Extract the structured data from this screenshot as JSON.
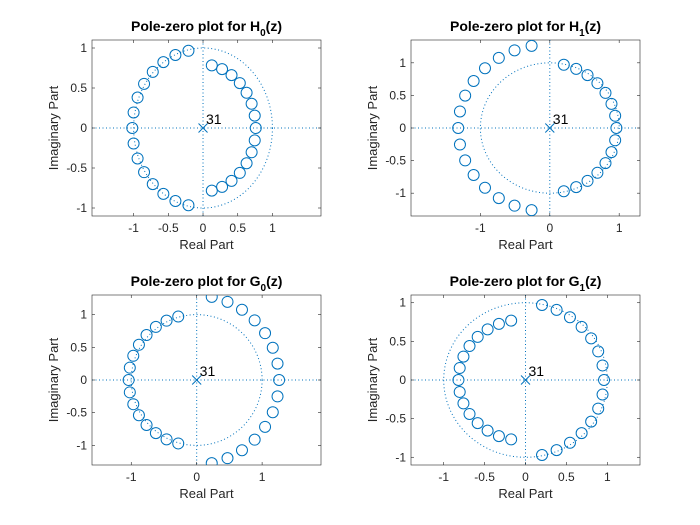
{
  "chart_data": [
    {
      "type": "scatter",
      "title": "Pole-zero plot for H",
      "title_subscript": "0",
      "title_suffix": "(z)",
      "xlabel": "Real Part",
      "ylabel": "Imaginary Part",
      "xlim": [
        -1.6,
        1.7
      ],
      "ylim": [
        -1.1,
        1.1
      ],
      "xticks": [
        -1,
        -0.5,
        0,
        0.5,
        1
      ],
      "xtick_labels": [
        "-1",
        "-0.5",
        "0",
        "0.5",
        "1"
      ],
      "yticks": [
        -1,
        -0.5,
        0,
        0.5,
        1
      ],
      "ytick_labels": [
        "-1",
        "-0.5",
        "0",
        "0.5",
        "1"
      ],
      "color": "#0072bd",
      "unit_circle": true,
      "poles": [
        [
          0,
          0
        ]
      ],
      "pole_multiplicity_label": "31",
      "zeros_arcs": [
        {
          "cx": -0.04,
          "cy": 0,
          "r": 0.98,
          "from_deg": 100,
          "to_deg": 260,
          "count": 15
        },
        {
          "cx": -0.04,
          "cy": 0,
          "r": 0.8,
          "from_deg": -78,
          "to_deg": 78,
          "count": 15
        }
      ]
    },
    {
      "type": "scatter",
      "title": "Pole-zero plot for H",
      "title_subscript": "1",
      "title_suffix": "(z)",
      "xlabel": "Real Part",
      "ylabel": "Imaginary Part",
      "xlim": [
        -2,
        1.3
      ],
      "ylim": [
        -1.35,
        1.35
      ],
      "xticks": [
        -1,
        0,
        1
      ],
      "xtick_labels": [
        "-1",
        "0",
        "1"
      ],
      "yticks": [
        -1,
        -0.5,
        0,
        0.5,
        1
      ],
      "ytick_labels": [
        "-1",
        "-0.5",
        "0",
        "0.5",
        "1"
      ],
      "color": "#0072bd",
      "unit_circle": true,
      "poles": [
        [
          0,
          0
        ]
      ],
      "pole_multiplicity_label": "31",
      "zeros_arcs": [
        {
          "cx": -0.04,
          "cy": 0,
          "r": 1.28,
          "from_deg": 100,
          "to_deg": 260,
          "count": 15
        },
        {
          "cx": -0.04,
          "cy": 0,
          "r": 1.0,
          "from_deg": -76,
          "to_deg": 76,
          "count": 15
        }
      ]
    },
    {
      "type": "scatter",
      "title": "Pole-zero plot for G",
      "title_subscript": "0",
      "title_suffix": "(z)",
      "xlabel": "Real Part",
      "ylabel": "Imaginary Part",
      "xlim": [
        -1.6,
        1.9
      ],
      "ylim": [
        -1.3,
        1.3
      ],
      "xticks": [
        -1,
        0,
        1
      ],
      "xtick_labels": [
        "-1",
        "0",
        "1"
      ],
      "yticks": [
        -1,
        -0.5,
        0,
        0.5,
        1
      ],
      "ytick_labels": [
        "-1",
        "-0.5",
        "0",
        "0.5",
        "1"
      ],
      "color": "#0072bd",
      "unit_circle": true,
      "poles": [
        [
          0,
          0
        ]
      ],
      "pole_multiplicity_label": "31",
      "zeros_arcs": [
        {
          "cx": -0.04,
          "cy": 0,
          "r": 1.0,
          "from_deg": 104,
          "to_deg": 256,
          "count": 15
        },
        {
          "cx": -0.04,
          "cy": 0,
          "r": 1.3,
          "from_deg": -78,
          "to_deg": 78,
          "count": 15
        }
      ]
    },
    {
      "type": "scatter",
      "title": "Pole-zero plot for G",
      "title_subscript": "1",
      "title_suffix": "(z)",
      "xlabel": "Real Part",
      "ylabel": "Imaginary Part",
      "xlim": [
        -1.4,
        1.4
      ],
      "ylim": [
        -1.1,
        1.1
      ],
      "xticks": [
        -1,
        -0.5,
        0,
        0.5,
        1
      ],
      "xtick_labels": [
        "-1",
        "-0.5",
        "0",
        "0.5",
        "1"
      ],
      "yticks": [
        -1,
        -0.5,
        0,
        0.5,
        1
      ],
      "ytick_labels": [
        "-1",
        "-0.5",
        "0",
        "0.5",
        "1"
      ],
      "color": "#0072bd",
      "unit_circle": true,
      "poles": [
        [
          0,
          0
        ]
      ],
      "pole_multiplicity_label": "31",
      "zeros_arcs": [
        {
          "cx": -0.04,
          "cy": 0,
          "r": 0.78,
          "from_deg": 100,
          "to_deg": 260,
          "count": 15
        },
        {
          "cx": -0.04,
          "cy": 0,
          "r": 1.0,
          "from_deg": -76,
          "to_deg": 76,
          "count": 15
        }
      ]
    }
  ]
}
